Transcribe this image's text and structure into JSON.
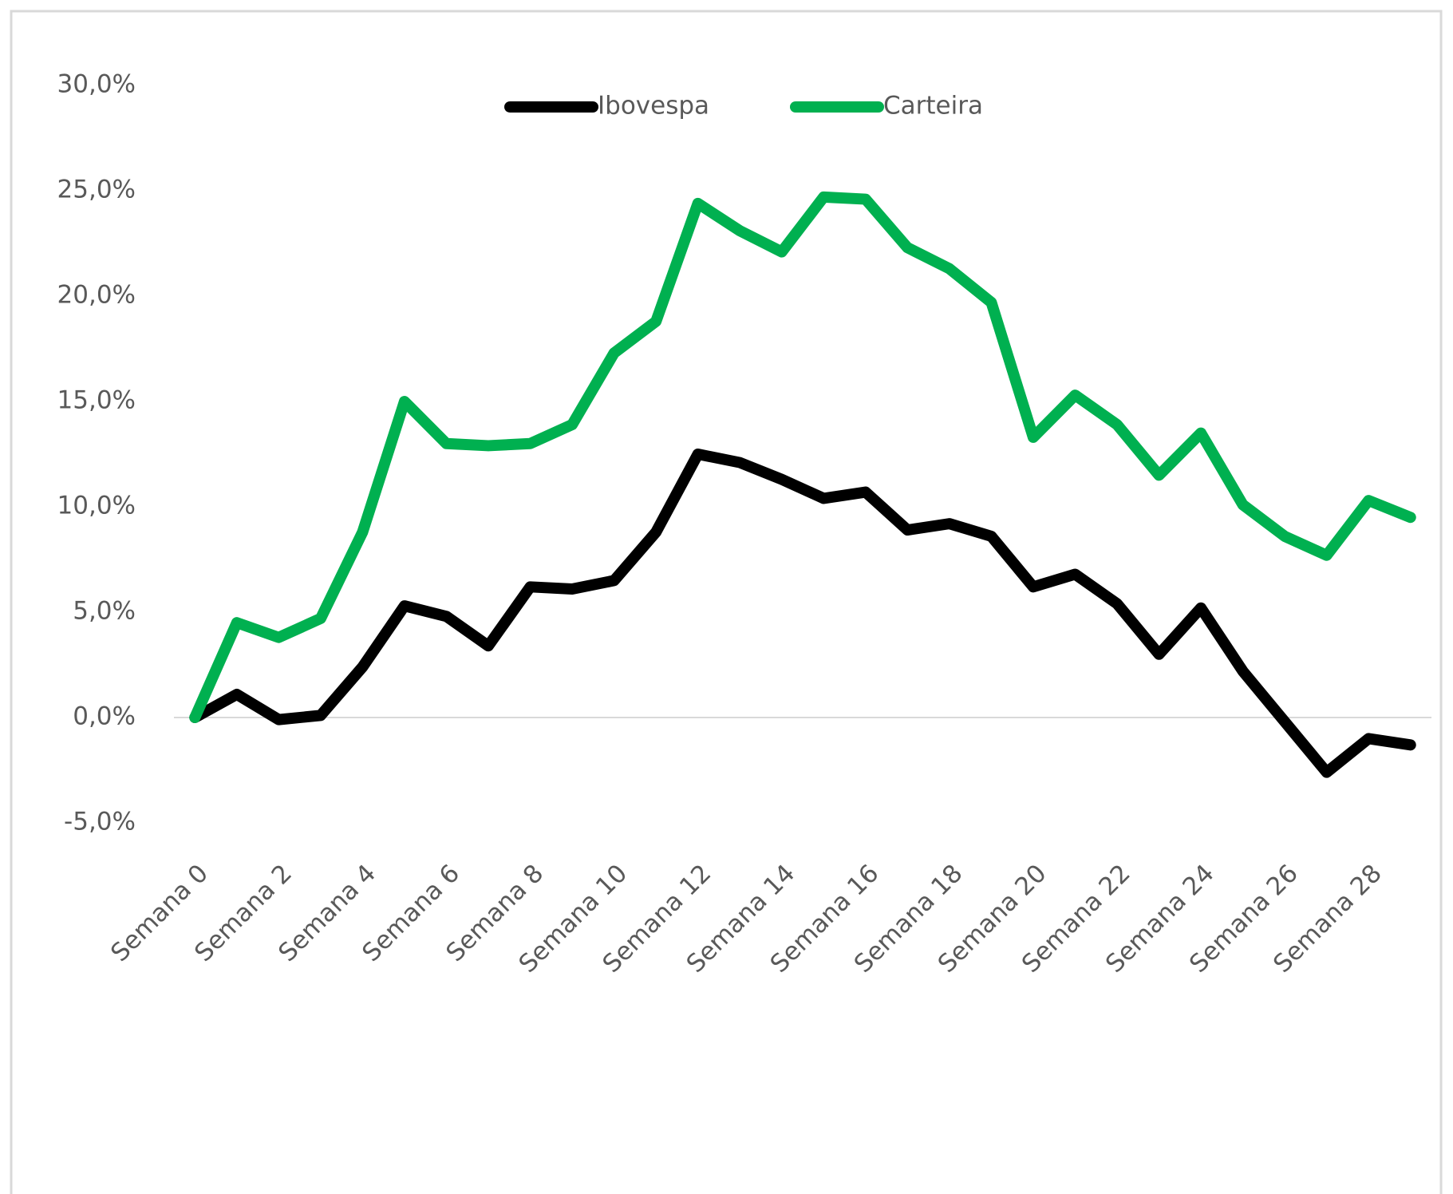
{
  "chart_data": {
    "type": "line",
    "categories": [
      "Semana 0",
      null,
      "Semana 2",
      null,
      "Semana 4",
      null,
      "Semana 6",
      null,
      "Semana 8",
      null,
      "Semana 10",
      null,
      "Semana 12",
      null,
      "Semana 14",
      null,
      "Semana 16",
      null,
      "Semana 18",
      null,
      "Semana 20",
      null,
      "Semana 22",
      null,
      "Semana 24",
      null,
      "Semana 26",
      null,
      "Semana 28",
      null
    ],
    "series": [
      {
        "name": "Ibovespa",
        "color": "#000000",
        "values": [
          0,
          1.1,
          -0.1,
          0.1,
          2.4,
          5.3,
          4.8,
          3.4,
          6.2,
          6.1,
          6.5,
          8.8,
          12.5,
          12.1,
          11.3,
          10.4,
          10.7,
          8.9,
          9.2,
          8.6,
          6.2,
          6.8,
          5.4,
          3.0,
          5.2,
          2.2,
          -0.2,
          -2.6,
          -1.0,
          -1.3
        ]
      },
      {
        "name": "Carteira",
        "color": "#00b050",
        "values": [
          0,
          4.5,
          3.8,
          4.7,
          8.8,
          15.0,
          13.0,
          12.9,
          13.0,
          13.9,
          17.3,
          18.8,
          24.4,
          23.1,
          22.1,
          24.7,
          24.6,
          22.3,
          21.3,
          19.7,
          13.3,
          15.3,
          13.9,
          11.5,
          13.5,
          10.1,
          8.6,
          7.7,
          10.3,
          9.5
        ]
      }
    ],
    "ylim": [
      -5,
      30
    ],
    "yticks": [
      {
        "value": 30,
        "label": "30,0%"
      },
      {
        "value": 25,
        "label": "25,0%"
      },
      {
        "value": 20,
        "label": "20,0%"
      },
      {
        "value": 15,
        "label": "15,0%"
      },
      {
        "value": 10,
        "label": "10,0%"
      },
      {
        "value": 5,
        "label": "5,0%"
      },
      {
        "value": 0,
        "label": "0,0%"
      },
      {
        "value": -5,
        "label": "-5,0%"
      }
    ],
    "grid": false,
    "legend": "top"
  }
}
